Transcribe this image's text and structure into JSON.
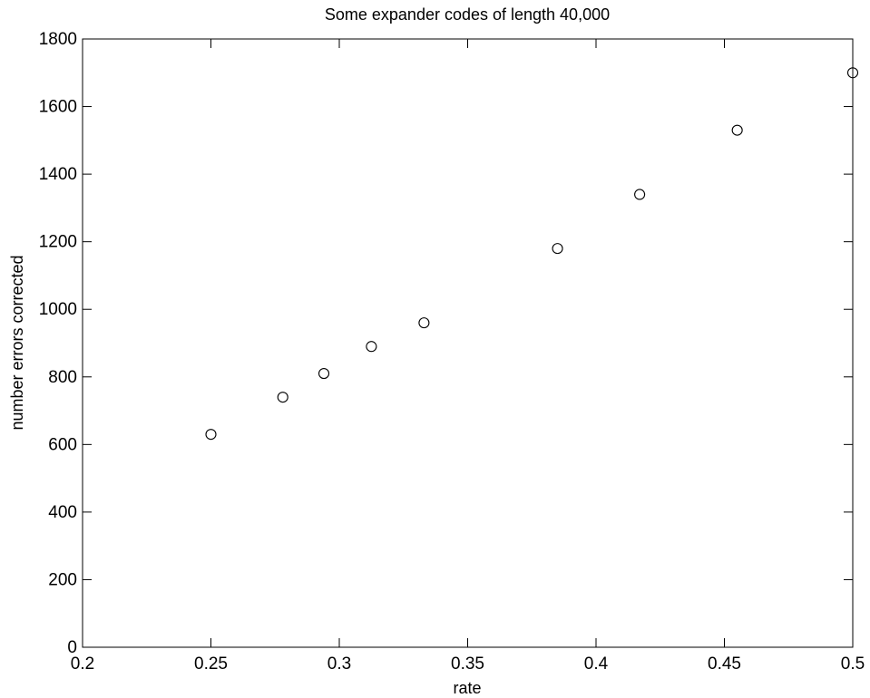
{
  "chart_data": {
    "type": "scatter",
    "title": "Some expander codes of length 40,000",
    "xlabel": "rate",
    "ylabel": "number errors corrected",
    "xlim": [
      0.2,
      0.5
    ],
    "ylim": [
      0,
      1800
    ],
    "xticks": [
      0.2,
      0.25,
      0.3,
      0.35,
      0.4,
      0.45,
      0.5
    ],
    "xtick_labels": [
      "0.2",
      "0.25",
      "0.3",
      "0.35",
      "0.4",
      "0.45",
      "0.5"
    ],
    "yticks": [
      0,
      200,
      400,
      600,
      800,
      1000,
      1200,
      1400,
      1600,
      1800
    ],
    "ytick_labels": [
      "0",
      "200",
      "400",
      "600",
      "800",
      "1000",
      "1200",
      "1400",
      "1600",
      "1800"
    ],
    "grid": false,
    "marker": "open-circle",
    "marker_color": "#000000",
    "points": [
      {
        "x": 0.25,
        "y": 630
      },
      {
        "x": 0.278,
        "y": 740
      },
      {
        "x": 0.294,
        "y": 810
      },
      {
        "x": 0.3125,
        "y": 890
      },
      {
        "x": 0.333,
        "y": 960
      },
      {
        "x": 0.385,
        "y": 1180
      },
      {
        "x": 0.417,
        "y": 1340
      },
      {
        "x": 0.455,
        "y": 1530
      },
      {
        "x": 0.5,
        "y": 1700
      }
    ]
  }
}
